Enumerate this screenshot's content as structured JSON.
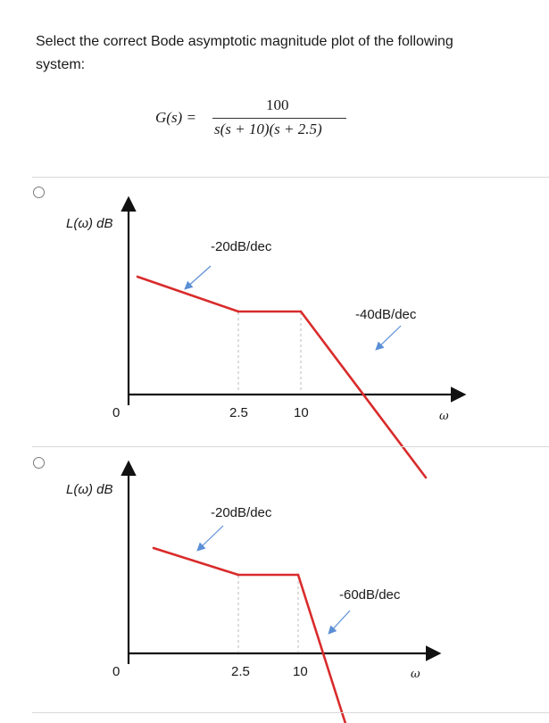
{
  "question": {
    "text": "Select the correct Bode asymptotic magnitude plot of the following system:",
    "formula": {
      "lhs": "G(s) =",
      "numerator": "100",
      "denominator": "s(s + 10)(s + 2.5)"
    }
  },
  "options": [
    {
      "selected": false,
      "chart_data": {
        "type": "line",
        "title": "",
        "ylabel": "L(ω) dB",
        "xlabel": "ω",
        "x_axis_origin_label": "0",
        "x_ticks": [
          "2.5",
          "10"
        ],
        "series": [
          {
            "points": [
              [
                0.8,
                31
              ],
              [
                2.5,
                20
              ],
              [
                10,
                20
              ],
              [
                100,
                -20
              ]
            ]
          }
        ],
        "annotations": [
          "-20dB/dec",
          "-40dB/dec"
        ],
        "colors": {
          "asymptote": "#d92b2b",
          "annotation_arrow": "#5b8fd6",
          "axis": "#111111"
        }
      }
    },
    {
      "selected": false,
      "chart_data": {
        "type": "line",
        "title": "",
        "ylabel": "L(ω) dB",
        "xlabel": "ω",
        "x_axis_origin_label": "0",
        "x_ticks": [
          "2.5",
          "10"
        ],
        "series": [
          {
            "points": [
              [
                0.8,
                31
              ],
              [
                2.5,
                20
              ],
              [
                10,
                20
              ],
              [
                20,
                -20
              ]
            ]
          }
        ],
        "annotations": [
          "-20dB/dec",
          "-60dB/dec"
        ],
        "colors": {
          "asymptote": "#d92b2b",
          "annotation_arrow": "#5b8fd6",
          "axis": "#111111"
        }
      }
    }
  ]
}
